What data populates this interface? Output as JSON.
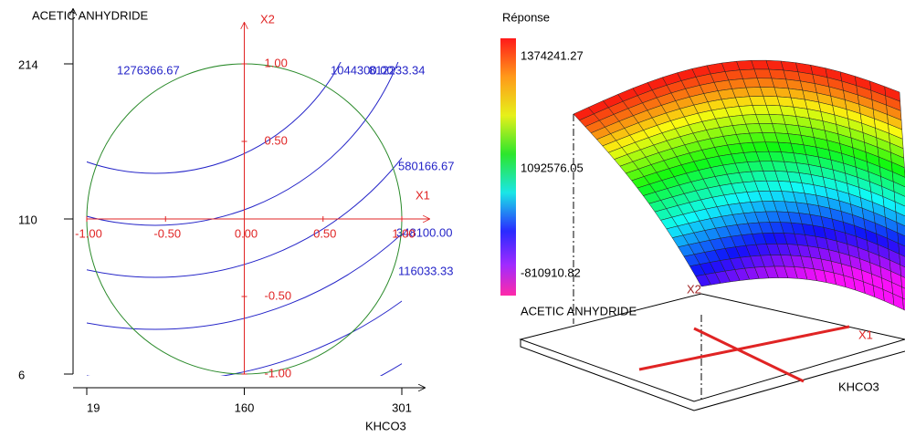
{
  "chart_data": [
    {
      "type": "contour",
      "x_label": "KHCO3",
      "y_label": "ACETIC ANHYDRIDE",
      "xlim": [
        19,
        301
      ],
      "ylim": [
        6,
        214
      ],
      "xticks": [
        19,
        160,
        301
      ],
      "yticks": [
        6,
        110,
        214
      ],
      "coded_x_name": "X1",
      "coded_y_name": "X2",
      "coded_lim": [
        -1,
        1
      ],
      "coded_xticks": [
        {
          "value": -1,
          "label": "-1.00"
        },
        {
          "value": -0.5,
          "label": "-0.50"
        },
        {
          "value": 0,
          "label": "0.00"
        },
        {
          "value": 0.5,
          "label": "0.50"
        },
        {
          "value": 1,
          "label": "1.00"
        }
      ],
      "coded_yticks": [
        {
          "value": 1,
          "label": "1.00"
        },
        {
          "value": 0.5,
          "label": "0.50"
        },
        {
          "value": -0.5,
          "label": "-0.50"
        },
        {
          "value": -1,
          "label": "-1.00"
        }
      ],
      "levels": [
        1276366.67,
        {
          "value": 1044300,
          "label": "1044300.00"
        },
        812233.34,
        580166.67,
        {
          "value": 348100,
          "label": "348100.00"
        },
        116033.33
      ],
      "color": "#2424c8",
      "coded_color": "#e02424",
      "domain_color": "#2a8a2a"
    },
    {
      "type": "surface",
      "colorbar_title": "Réponse",
      "colorbar_ticks": [
        1374241.27,
        1092576.05,
        -810910.82
      ],
      "x_label": "KHCO3",
      "y_label": "ACETIC ANHYDRIDE",
      "coded_x_name": "X1",
      "coded_y_name": "X2"
    }
  ]
}
